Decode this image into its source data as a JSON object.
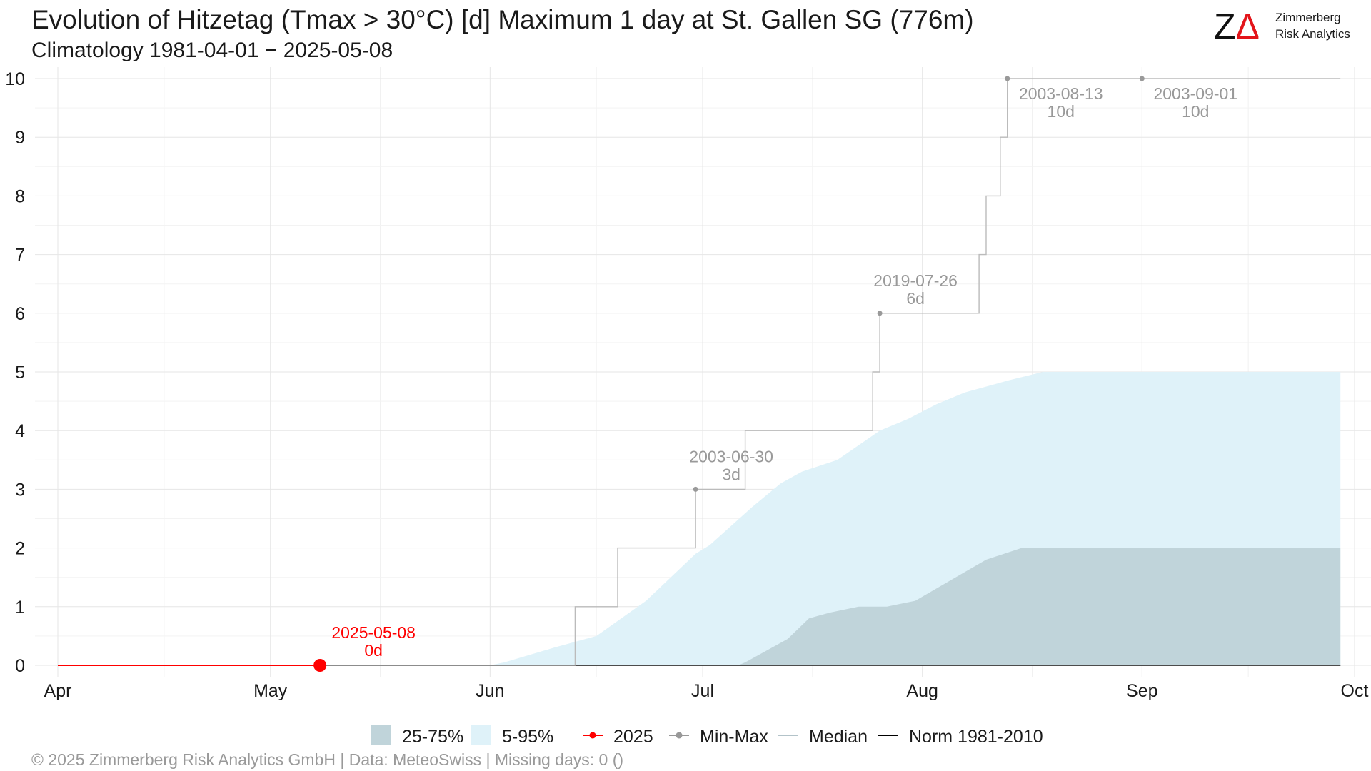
{
  "header": {
    "title": "Evolution of Hitzetag (Tmax > 30°C) [d] Maximum 1 day at St. Gallen  SG (776m)",
    "subtitle": "Climatology 1981-04-01 − 2025-05-08"
  },
  "logo": {
    "mark": "ZΔ",
    "line1": "Zimmerberg",
    "line2": "Risk Analytics"
  },
  "footer": {
    "caption": "©  2025 Zimmerberg Risk Analytics GmbH | Data: MeteoSwiss | Missing days: 0 ()"
  },
  "colors": {
    "band_25_75": "#c0d4da",
    "band_5_95": "#dff2f9",
    "current_year": "#ff0000",
    "minmax": "#999999",
    "median": "#b3c3c9",
    "norm": "#000000",
    "grid": "#e6e6e6",
    "text": "#1a1a1a",
    "annotation": "#999999"
  },
  "chart_data": {
    "type": "area",
    "title": "Evolution of Hitzetag (Tmax > 30°C) [d] Maximum 1 day at St. Gallen  SG (776m)",
    "subtitle": "Climatology 1981-04-01 − 2025-05-08",
    "xlabel": "",
    "ylabel": "",
    "x_range": [
      "2025-04-01",
      "2025-10-01"
    ],
    "ylim": [
      0,
      10
    ],
    "x_ticks": [
      {
        "date": "2025-04-01",
        "label": "Apr"
      },
      {
        "date": "2025-05-01",
        "label": "May"
      },
      {
        "date": "2025-06-01",
        "label": "Jun"
      },
      {
        "date": "2025-07-01",
        "label": "Jul"
      },
      {
        "date": "2025-08-01",
        "label": "Aug"
      },
      {
        "date": "2025-09-01",
        "label": "Sep"
      },
      {
        "date": "2025-10-01",
        "label": "Oct"
      }
    ],
    "y_ticks": [
      0,
      1,
      2,
      3,
      4,
      5,
      6,
      7,
      8,
      9,
      10
    ],
    "grid": true,
    "legend_position": "bottom",
    "legend": [
      {
        "key": "band_25_75",
        "label": "25-75%",
        "kind": "fill"
      },
      {
        "key": "band_5_95",
        "label": "5-95%",
        "kind": "fill"
      },
      {
        "key": "current",
        "label": "2025",
        "kind": "line-point"
      },
      {
        "key": "minmax",
        "label": "Min-Max",
        "kind": "line-point"
      },
      {
        "key": "median",
        "label": "Median",
        "kind": "line"
      },
      {
        "key": "norm",
        "label": "Norm 1981-2010",
        "kind": "line"
      }
    ],
    "band_5_95": {
      "dates": [
        "2025-04-01",
        "2025-06-01",
        "2025-06-03",
        "2025-06-10",
        "2025-06-16",
        "2025-06-23",
        "2025-06-30",
        "2025-07-02",
        "2025-07-08",
        "2025-07-12",
        "2025-07-15",
        "2025-07-20",
        "2025-07-23",
        "2025-07-26",
        "2025-07-30",
        "2025-08-03",
        "2025-08-07",
        "2025-08-13",
        "2025-08-18",
        "2025-09-01",
        "2025-09-29"
      ],
      "upper": [
        0,
        0,
        0.05,
        0.3,
        0.5,
        1.1,
        1.9,
        2.05,
        2.7,
        3.1,
        3.3,
        3.5,
        3.75,
        4.0,
        4.2,
        4.45,
        4.65,
        4.85,
        5.0,
        5.0,
        5.0
      ],
      "lower": [
        0,
        0,
        0,
        0,
        0,
        0,
        0,
        0,
        0,
        0,
        0,
        0,
        0,
        0,
        0,
        0,
        0,
        0,
        0,
        0,
        0
      ]
    },
    "band_25_75": {
      "dates": [
        "2025-04-01",
        "2025-07-06",
        "2025-07-07",
        "2025-07-13",
        "2025-07-16",
        "2025-07-19",
        "2025-07-23",
        "2025-07-27",
        "2025-07-31",
        "2025-08-05",
        "2025-08-10",
        "2025-08-15",
        "2025-08-18",
        "2025-09-01",
        "2025-09-29"
      ],
      "upper": [
        0,
        0,
        0.05,
        0.45,
        0.8,
        0.9,
        1.0,
        1.0,
        1.1,
        1.45,
        1.8,
        2.0,
        2.0,
        2.0,
        2.0
      ],
      "lower": [
        0,
        0,
        0,
        0,
        0,
        0,
        0,
        0,
        0,
        0,
        0,
        0,
        0,
        0,
        0
      ]
    },
    "max_series": {
      "name": "Min-Max",
      "dates": [
        "2025-04-01",
        "2025-06-12",
        "2025-06-13",
        "2025-06-19",
        "2025-06-30",
        "2025-07-07",
        "2025-07-25",
        "2025-07-26",
        "2025-08-09",
        "2025-08-10",
        "2025-08-12",
        "2025-08-13",
        "2025-09-29"
      ],
      "values": [
        0,
        0,
        1,
        2,
        3,
        4,
        5,
        6,
        7,
        8,
        9,
        10,
        10
      ]
    },
    "min_series": {
      "name": "Min-Max",
      "dates": [
        "2025-04-01",
        "2025-09-29"
      ],
      "values": [
        0,
        0
      ]
    },
    "median_series": {
      "name": "Median",
      "dates": [
        "2025-04-01",
        "2025-09-29"
      ],
      "values": [
        0,
        0
      ]
    },
    "norm_series": {
      "name": "Norm 1981-2010",
      "dates": [
        "2025-04-01",
        "2025-09-29"
      ],
      "values": [
        0,
        0
      ]
    },
    "current_series": {
      "name": "2025",
      "dates": [
        "2025-04-01",
        "2025-05-08"
      ],
      "values": [
        0,
        0
      ],
      "last": {
        "date": "2025-05-08",
        "value": 0
      }
    },
    "record_points": [
      {
        "date": "2025-06-30",
        "value": 3,
        "label_date": "2003-06-30",
        "label_value": "3d"
      },
      {
        "date": "2025-07-26",
        "value": 6,
        "label_date": "2019-07-26",
        "label_value": "6d"
      },
      {
        "date": "2025-08-13",
        "value": 10,
        "label_date": "2003-08-13",
        "label_value": "10d"
      },
      {
        "date": "2025-09-01",
        "value": 10,
        "label_date": "2003-09-01",
        "label_value": "10d"
      }
    ],
    "current_annotation": {
      "date": "2025-05-08",
      "value": 0,
      "label_date": "2025-05-08",
      "label_value": "0d"
    }
  }
}
